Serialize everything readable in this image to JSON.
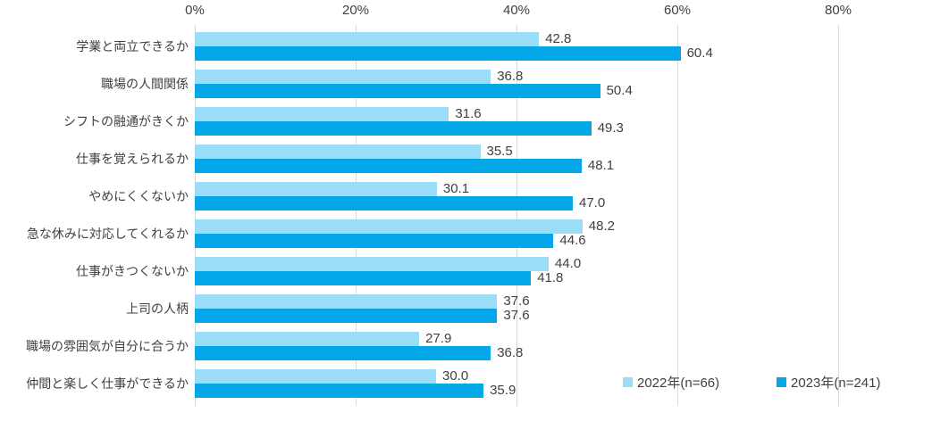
{
  "chart_data": {
    "type": "bar",
    "orientation": "horizontal",
    "title": "",
    "xlabel": "",
    "ylabel": "",
    "categories": [
      "学業と両立できるか",
      "職場の人間関係",
      "シフトの融通がきくか",
      "仕事を覚えられるか",
      "やめにくくないか",
      "急な休みに対応してくれるか",
      "仕事がきつくないか",
      "上司の人柄",
      "職場の雰囲気が自分に合うか",
      "仲間と楽しく仕事ができるか"
    ],
    "series": [
      {
        "name": "2022年(n=66)",
        "color": "#9bdcf9",
        "values": [
          42.8,
          36.8,
          31.6,
          35.5,
          30.1,
          48.2,
          44.0,
          37.6,
          27.9,
          30.0
        ],
        "labels": [
          "42.8",
          "36.8",
          "31.6",
          "35.5",
          "30.1",
          "48.2",
          "44.0",
          "37.6",
          "27.9",
          "30.0"
        ]
      },
      {
        "name": "2023年(n=241)",
        "color": "#04a7e8",
        "values": [
          60.4,
          50.4,
          49.3,
          48.1,
          47.0,
          44.6,
          41.8,
          37.6,
          36.8,
          35.9
        ],
        "labels": [
          "60.4",
          "50.4",
          "49.3",
          "48.1",
          "47.0",
          "44.6",
          "41.8",
          "37.6",
          "36.8",
          "35.9"
        ]
      }
    ],
    "x_ticks": {
      "values": [
        0,
        20,
        40,
        60,
        80
      ],
      "labels": [
        "0%",
        "20%",
        "40%",
        "60%",
        "80%"
      ]
    },
    "xlim": [
      0,
      80
    ],
    "grid": "vertical",
    "gridline_color": "#d9d9d9",
    "text_color": "#404040",
    "legend_position": "bottom-right"
  }
}
